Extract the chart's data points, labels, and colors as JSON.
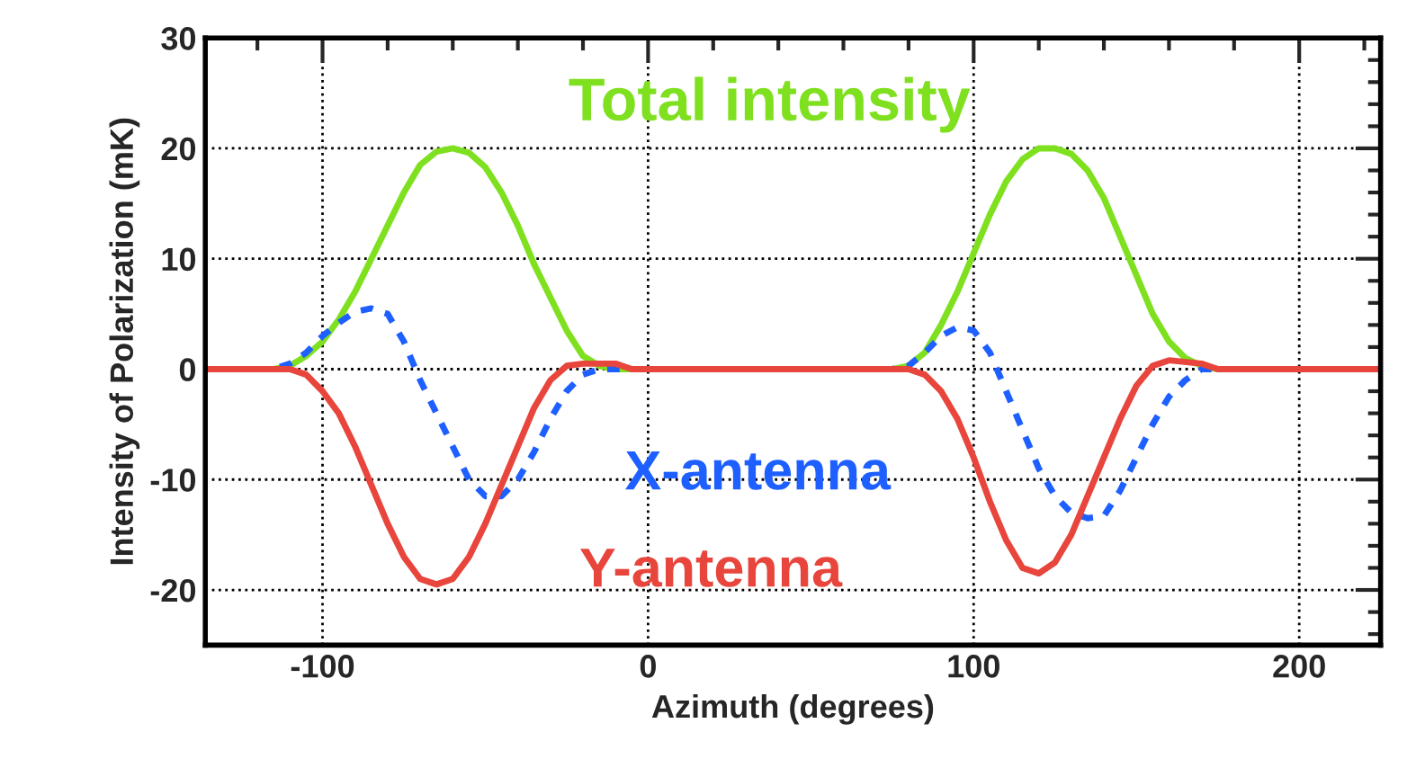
{
  "chart_data": {
    "type": "line",
    "xlabel": "Azimuth (degrees)",
    "ylabel": "Intensity of Polarization (mK)",
    "xlim": [
      -136,
      225
    ],
    "ylim": [
      -25,
      30
    ],
    "xticks": [
      -100,
      0,
      100,
      200
    ],
    "yticks": [
      -20,
      -10,
      0,
      10,
      20,
      30
    ],
    "grid": true,
    "legend": false,
    "marker": "none",
    "series": [
      {
        "name": "Total intensity",
        "color": "#7fe01f",
        "line_style": "solid",
        "x": [
          -136,
          -115,
          -110,
          -105,
          -100,
          -95,
          -90,
          -85,
          -80,
          -75,
          -70,
          -65,
          -60,
          -55,
          -50,
          -45,
          -40,
          -35,
          -30,
          -25,
          -20,
          -15,
          -10,
          70,
          75,
          80,
          85,
          90,
          95,
          100,
          105,
          110,
          115,
          120,
          125,
          130,
          135,
          140,
          145,
          150,
          155,
          160,
          165,
          170,
          175,
          225
        ],
        "values": [
          0,
          0,
          0.3,
          1.2,
          2.5,
          4.5,
          7,
          10,
          13,
          16,
          18.5,
          19.7,
          20,
          19.6,
          18.3,
          16,
          13,
          9.5,
          6.5,
          3.5,
          1.2,
          0.3,
          0,
          0,
          0,
          0.3,
          1.5,
          4,
          7,
          10.5,
          14,
          17,
          19,
          20,
          20,
          19.5,
          18,
          15.5,
          12,
          8.5,
          5,
          2.5,
          1,
          0.3,
          0,
          0
        ]
      },
      {
        "name": "X-antenna",
        "color": "#1e5fff",
        "line_style": "dashed",
        "x": [
          -136,
          -115,
          -110,
          -105,
          -100,
          -95,
          -90,
          -85,
          -80,
          -75,
          -70,
          -65,
          -60,
          -55,
          -50,
          -45,
          -40,
          -35,
          -30,
          -25,
          -20,
          -15,
          75,
          80,
          85,
          90,
          95,
          100,
          105,
          110,
          115,
          120,
          125,
          130,
          135,
          140,
          145,
          150,
          155,
          160,
          165,
          170,
          225
        ],
        "values": [
          0,
          0,
          0.5,
          1.5,
          3,
          4.2,
          5.2,
          5.5,
          5,
          2.5,
          -1,
          -4,
          -7,
          -10,
          -11.5,
          -11.5,
          -10,
          -7.5,
          -4.5,
          -2,
          -0.5,
          0,
          0,
          0.3,
          1.5,
          3,
          3.8,
          3.5,
          1.5,
          -2,
          -5.5,
          -9,
          -11.5,
          -13,
          -13.5,
          -13.3,
          -11,
          -8,
          -5,
          -2.5,
          -1,
          0,
          0
        ]
      },
      {
        "name": "Y-antenna",
        "color": "#e8453c",
        "line_style": "solid",
        "x": [
          -136,
          -110,
          -105,
          -100,
          -95,
          -90,
          -85,
          -80,
          -75,
          -70,
          -65,
          -60,
          -55,
          -50,
          -45,
          -40,
          -35,
          -30,
          -25,
          -20,
          -10,
          -5,
          75,
          80,
          85,
          90,
          95,
          100,
          105,
          110,
          115,
          120,
          125,
          130,
          135,
          140,
          145,
          150,
          155,
          160,
          170,
          175,
          225
        ],
        "values": [
          0,
          0,
          -0.5,
          -2,
          -4,
          -7,
          -10.5,
          -14,
          -17,
          -19,
          -19.5,
          -19,
          -17,
          -14,
          -10.5,
          -7,
          -3.5,
          -1,
          0.3,
          0.5,
          0.5,
          0,
          0,
          0,
          -0.5,
          -2,
          -4.5,
          -8,
          -12,
          -15.5,
          -18,
          -18.5,
          -17.5,
          -15,
          -11.5,
          -8,
          -4.5,
          -1.5,
          0.3,
          0.8,
          0.5,
          0,
          0
        ]
      }
    ]
  }
}
